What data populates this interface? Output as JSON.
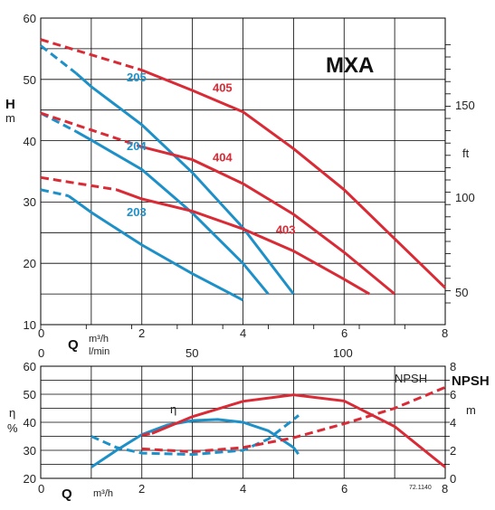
{
  "colors": {
    "blue": "#1E90C8",
    "red": "#D92B36",
    "grid": "#000000"
  },
  "chart_data": [
    {
      "type": "line",
      "title": "MXA",
      "xlabel": "Q",
      "x_units": [
        "m³/h",
        "l/min"
      ],
      "ylabel": "H",
      "y_unit": "m",
      "y2_unit": "ft",
      "xlim": [
        0,
        8
      ],
      "ylim": [
        10,
        60
      ],
      "x_ticks": [
        0,
        2,
        4,
        6,
        8
      ],
      "y_ticks": [
        10,
        20,
        30,
        40,
        50,
        60
      ],
      "x_lmin_ticks": [
        0,
        50,
        100
      ],
      "y_ft_ticks": [
        50,
        100,
        150
      ],
      "grid": true,
      "series": [
        {
          "name": "203",
          "color": "blue",
          "dashed": [
            [
              0,
              32
            ],
            [
              0.55,
              31
            ]
          ],
          "solid": [
            [
              0.55,
              31
            ],
            [
              1,
              28.3
            ],
            [
              2,
              23
            ],
            [
              3,
              18.3
            ],
            [
              4,
              14
            ]
          ],
          "label_at": [
            1.7,
            27.7
          ]
        },
        {
          "name": "204",
          "color": "blue",
          "dashed": [
            [
              0,
              44.5
            ],
            [
              0.7,
              41.5
            ]
          ],
          "solid": [
            [
              0.7,
              41.5
            ],
            [
              1,
              40.1
            ],
            [
              2,
              35.3
            ],
            [
              3,
              28.2
            ],
            [
              4,
              20
            ],
            [
              4.5,
              15
            ]
          ],
          "label_at": [
            1.7,
            38.5
          ]
        },
        {
          "name": "205",
          "color": "blue",
          "dashed": [
            [
              0,
              55.5
            ],
            [
              0.7,
              51
            ]
          ],
          "solid": [
            [
              0.7,
              51
            ],
            [
              1,
              48.8
            ],
            [
              2,
              42.6
            ],
            [
              3,
              34.8
            ],
            [
              4,
              25.8
            ],
            [
              5,
              15
            ]
          ],
          "label_at": [
            1.7,
            49.7
          ]
        },
        {
          "name": "403",
          "color": "red",
          "dashed": [
            [
              0,
              34
            ],
            [
              1.5,
              32
            ]
          ],
          "solid": [
            [
              1.5,
              32
            ],
            [
              2,
              30.5
            ],
            [
              3,
              28.5
            ],
            [
              4,
              25.6
            ],
            [
              5,
              22
            ],
            [
              6,
              17.4
            ],
            [
              6.5,
              15
            ]
          ],
          "label_at": [
            4.65,
            24.8
          ]
        },
        {
          "name": "404",
          "color": "red",
          "dashed": [
            [
              0,
              44.5
            ],
            [
              2,
              39
            ]
          ],
          "solid": [
            [
              2,
              39
            ],
            [
              3,
              36.9
            ],
            [
              4,
              33
            ],
            [
              5,
              28
            ],
            [
              6,
              21.8
            ],
            [
              7,
              15
            ]
          ],
          "label_at": [
            3.4,
            36.6
          ]
        },
        {
          "name": "405",
          "color": "red",
          "dashed": [
            [
              0,
              56.5
            ],
            [
              2,
              51.5
            ]
          ],
          "solid": [
            [
              2,
              51.5
            ],
            [
              3,
              48.2
            ],
            [
              4,
              44.7
            ],
            [
              5,
              38.7
            ],
            [
              6,
              32
            ],
            [
              7,
              24
            ],
            [
              8,
              16
            ]
          ],
          "label_at": [
            3.4,
            48
          ]
        }
      ]
    },
    {
      "type": "line",
      "xlabel": "Q",
      "x_unit": "m³/h",
      "ylabel": "η",
      "y_unit": "%",
      "y2_label": "NPSH",
      "y2_unit": "m",
      "xlim": [
        0,
        8
      ],
      "ylim": [
        20,
        60
      ],
      "y2lim": [
        0,
        8
      ],
      "x_ticks": [
        0,
        2,
        4,
        6,
        8
      ],
      "y_ticks": [
        20,
        30,
        40,
        50,
        60
      ],
      "y2_ticks": [
        0,
        2,
        4,
        6,
        8
      ],
      "grid": true,
      "npsh_box_label": "NPSH",
      "eta_label": "η",
      "code": "72.1140",
      "series": [
        {
          "kind": "eta",
          "color": "blue",
          "solid": [
            [
              1,
              24
            ],
            [
              1.5,
              30
            ],
            [
              2,
              35.6
            ],
            [
              2.5,
              39
            ],
            [
              3,
              40.6
            ],
            [
              3.5,
              41
            ],
            [
              4,
              40
            ],
            [
              4.5,
              37
            ],
            [
              5,
              31
            ]
          ],
          "dashed": [
            [
              5,
              31
            ],
            [
              5.1,
              28.5
            ]
          ]
        },
        {
          "kind": "eta",
          "color": "red",
          "dashed": [
            [
              2,
              35.4
            ],
            [
              2.2,
              36
            ]
          ],
          "solid": [
            [
              2.2,
              36
            ],
            [
              3,
              42
            ],
            [
              4,
              47.5
            ],
            [
              5,
              49.8
            ],
            [
              6,
              47.6
            ],
            [
              7,
              38.5
            ],
            [
              8,
              24
            ]
          ]
        },
        {
          "kind": "npsh",
          "color": "blue",
          "dashed": [
            [
              1,
              3
            ],
            [
              1.5,
              2.2
            ],
            [
              2,
              1.8
            ],
            [
              3,
              1.7
            ],
            [
              4,
              2
            ],
            [
              4.5,
              2.8
            ],
            [
              5,
              4.2
            ],
            [
              5.1,
              4.5
            ]
          ]
        },
        {
          "kind": "npsh",
          "color": "red",
          "dashed": [
            [
              2,
              2.1
            ],
            [
              3,
              1.9
            ],
            [
              4,
              2.2
            ],
            [
              5,
              2.9
            ],
            [
              6,
              3.9
            ],
            [
              7,
              5
            ],
            [
              8,
              6.5
            ]
          ]
        }
      ]
    }
  ]
}
